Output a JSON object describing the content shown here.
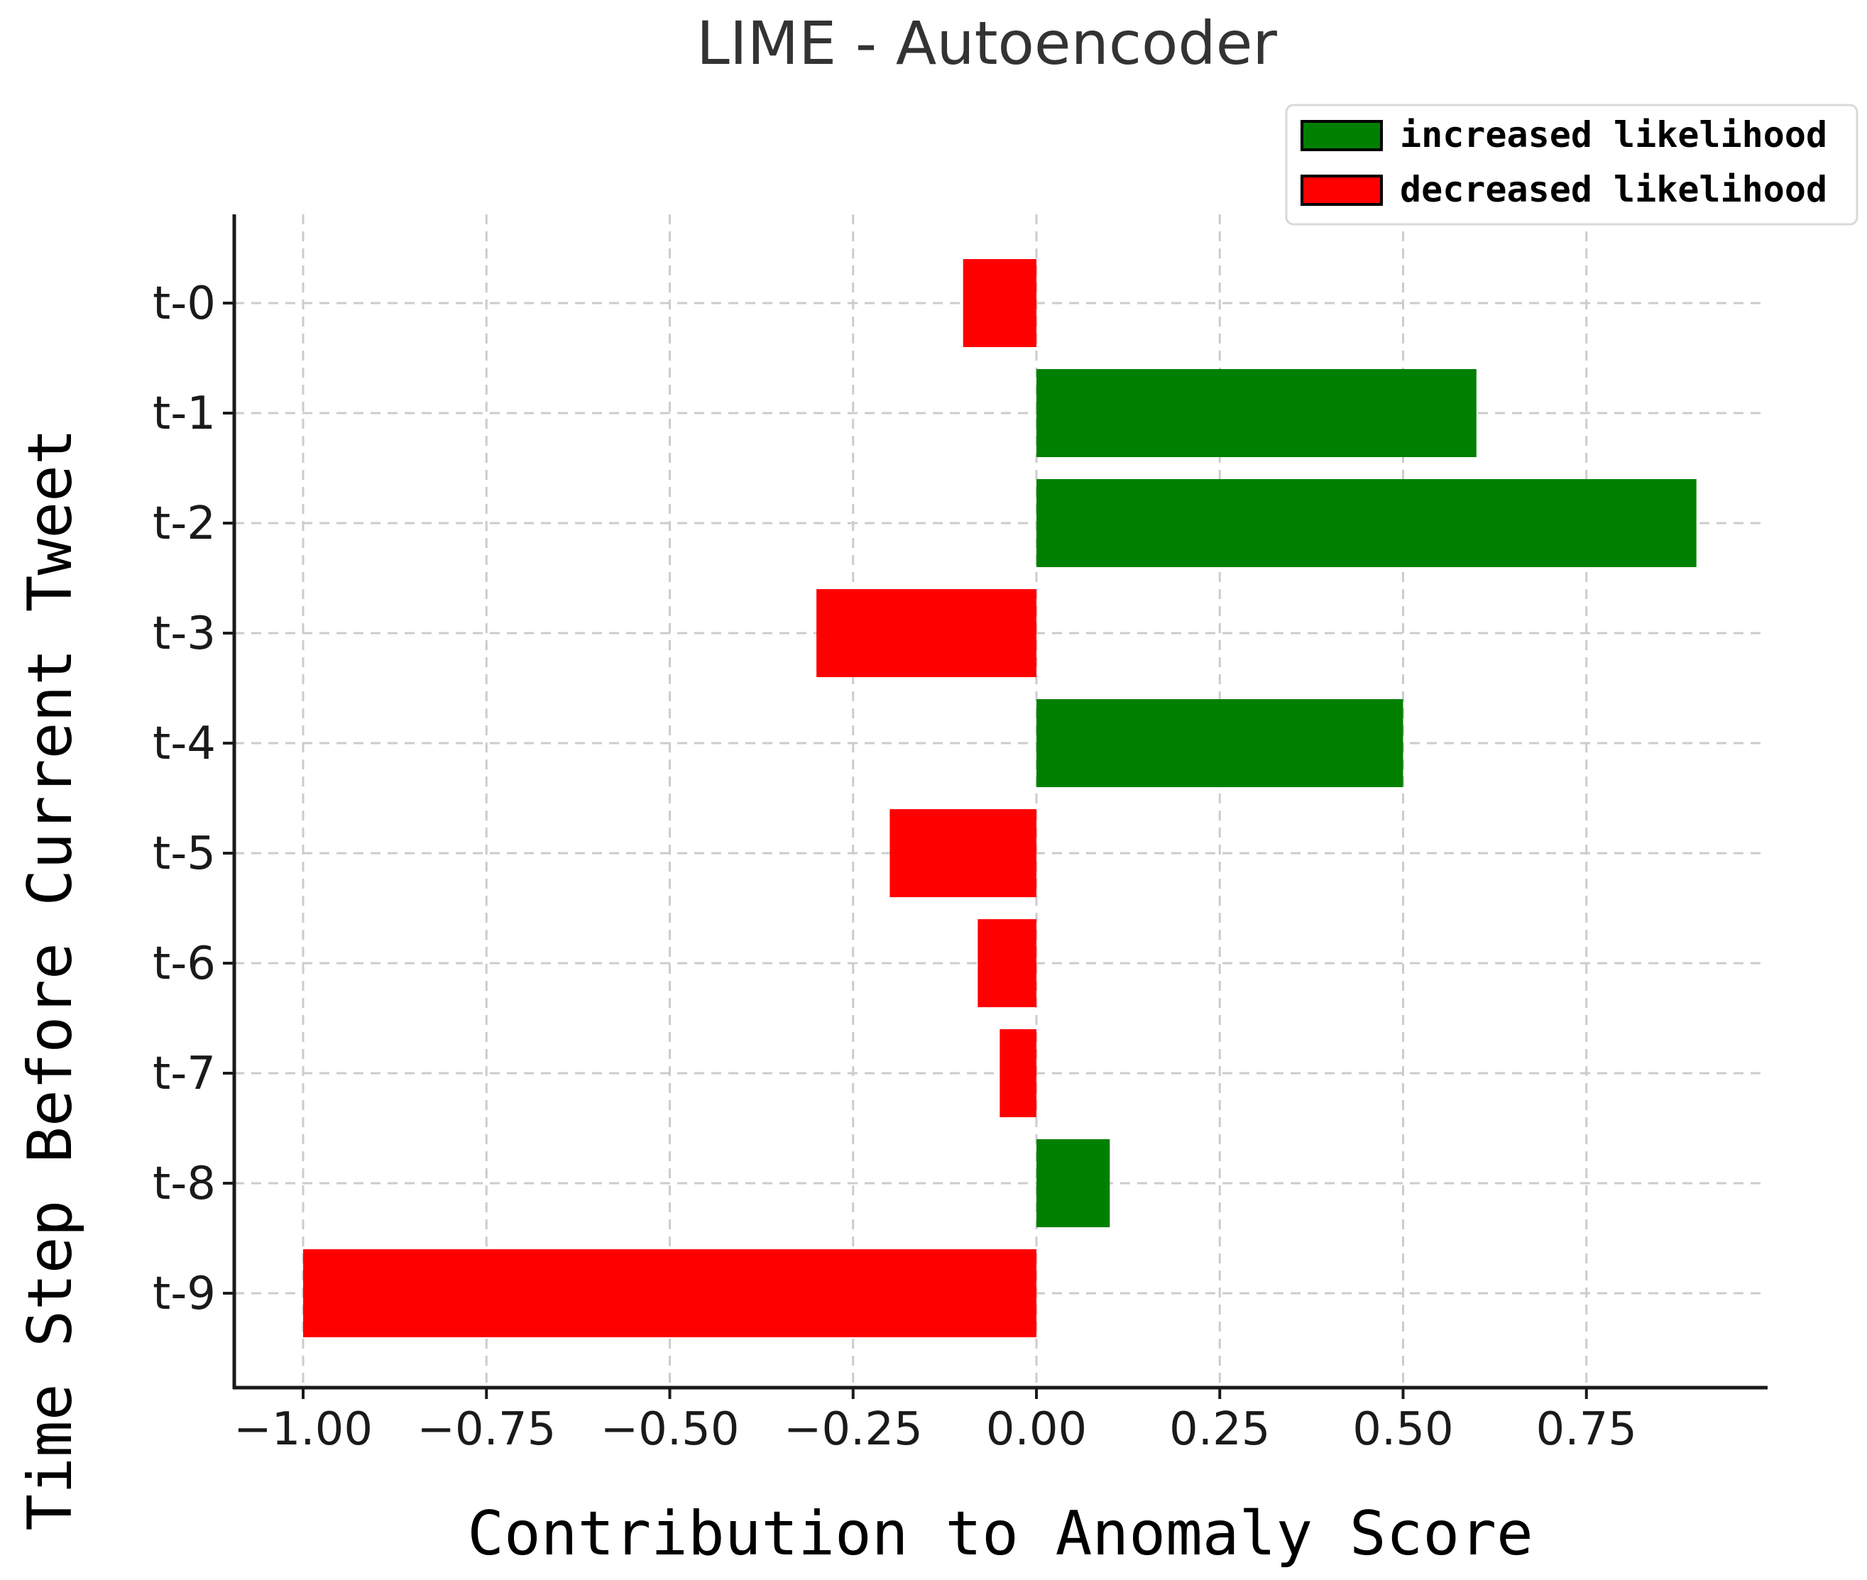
{
  "chart_data": {
    "type": "bar",
    "orientation": "horizontal",
    "title": "LIME - Autoencoder",
    "xlabel": "Contribution to Anomaly Score",
    "ylabel": "Time Step Before Current Tweet",
    "categories": [
      "t-0",
      "t-1",
      "t-2",
      "t-3",
      "t-4",
      "t-5",
      "t-6",
      "t-7",
      "t-8",
      "t-9"
    ],
    "values": [
      -0.1,
      0.6,
      0.9,
      -0.3,
      0.5,
      -0.2,
      -0.08,
      -0.05,
      0.1,
      -1.0
    ],
    "xlim": [
      -1.095,
      1.0
    ],
    "xticks": [
      -1.0,
      -0.75,
      -0.5,
      -0.25,
      0.0,
      0.25,
      0.5,
      0.75
    ],
    "xtick_labels": [
      "−1.00",
      "−0.75",
      "−0.50",
      "−0.25",
      "0.00",
      "0.25",
      "0.50",
      "0.75"
    ],
    "grid": true,
    "legend_position": "top-right",
    "legend": [
      {
        "label": "increased likelihood",
        "color": "#008000"
      },
      {
        "label": "decreased likelihood",
        "color": "#ff0000"
      }
    ],
    "colors": {
      "positive": "#008000",
      "negative": "#ff0000"
    }
  }
}
